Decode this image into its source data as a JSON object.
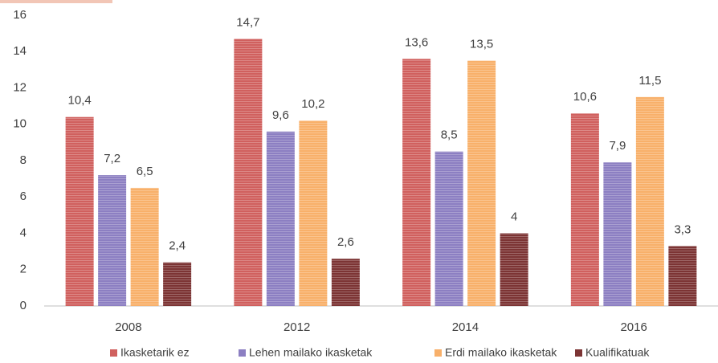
{
  "chart_data": {
    "type": "bar",
    "categories": [
      "2008",
      "2012",
      "2014",
      "2016"
    ],
    "series": [
      {
        "name": "Ikasketarik ez",
        "color": "#d0605e",
        "values": [
          10.4,
          14.7,
          13.6,
          10.6
        ],
        "value_labels": [
          "10,4",
          "14,7",
          "13,6",
          "10,6"
        ]
      },
      {
        "name": "Lehen mailako ikasketak",
        "color": "#8c7fc2",
        "values": [
          7.2,
          9.6,
          8.5,
          7.9
        ],
        "value_labels": [
          "7,2",
          "9,6",
          "8,5",
          "7,9"
        ]
      },
      {
        "name": "Erdi mailako ikasketak",
        "color": "#f8b06a",
        "values": [
          6.5,
          10.2,
          13.5,
          11.5
        ],
        "value_labels": [
          "6,5",
          "10,2",
          "13,5",
          "11,5"
        ]
      },
      {
        "name": "Kualifikatuak",
        "color": "#7c3434",
        "values": [
          2.4,
          2.6,
          4,
          3.3
        ],
        "value_labels": [
          "2,4",
          "2,6",
          "4",
          "3,3"
        ]
      }
    ],
    "ylim": [
      0,
      16
    ],
    "yticks": [
      0,
      2,
      4,
      6,
      8,
      10,
      12,
      14,
      16
    ],
    "grid": false,
    "legend": "bottom"
  }
}
